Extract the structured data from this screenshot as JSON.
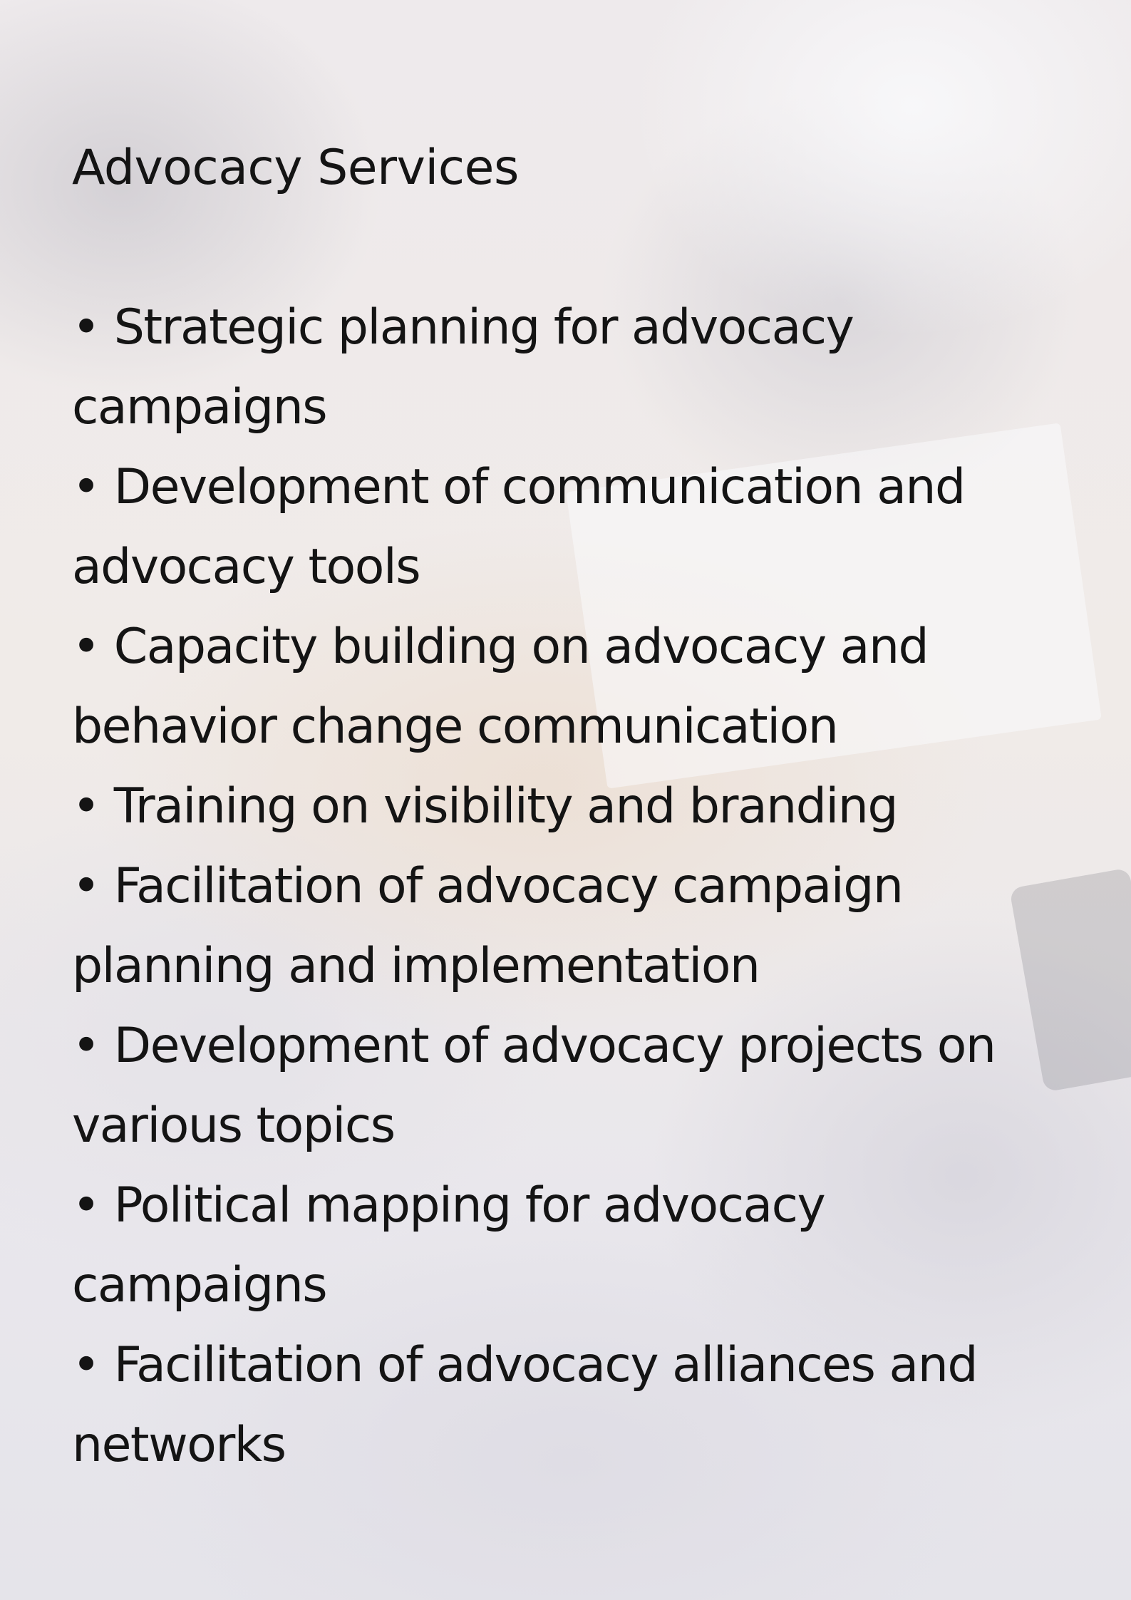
{
  "document": {
    "title": "Advocacy Services",
    "items": [
      "• Strategic planning for advocacy campaigns",
      "• Development of communication and advocacy tools",
      "• Capacity building on advocacy and behavior change communication",
      "• Training on visibility and branding",
      "• Facilitation of advocacy campaign planning and implementation",
      "• Development of advocacy projects on various topics",
      "• Political mapping for advocacy campaigns",
      "• Facilitation of advocacy alliances and networks"
    ]
  },
  "colors": {
    "text": "#141414",
    "background": "#ecebee"
  }
}
